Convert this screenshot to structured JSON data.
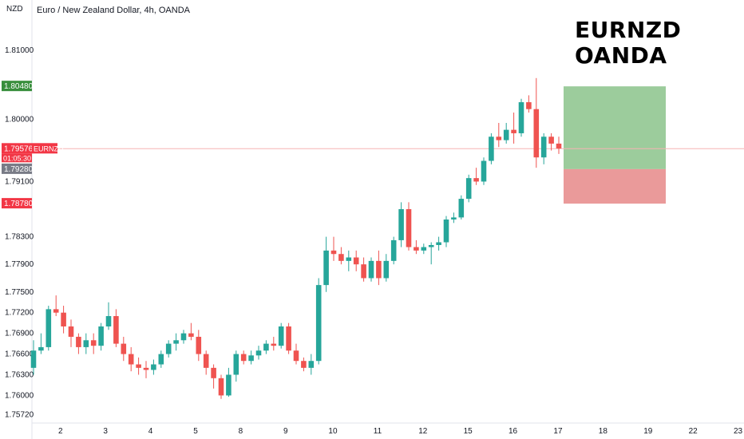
{
  "header": {
    "title": "Euro / New Zealand Dollar, 4h, OANDA",
    "axis_unit": "NZD"
  },
  "annotation": {
    "line1": "EURNZD",
    "line2": "OANDA"
  },
  "badges": {
    "target_price": "1.80480",
    "current_price": "1.79576",
    "symbol": "EURNZD",
    "countdown": "01:05:30",
    "entry_price": "1.79280",
    "stop_price": "1.78780"
  },
  "colors": {
    "up": "#26a69a",
    "down": "#ef5350",
    "target_zone": "#9ccc9c",
    "stop_zone": "#ea9a9a",
    "price_line": "#f7b3b3"
  },
  "chart_data": {
    "type": "candlestick",
    "y_ticks": [
      "1.81000",
      "1.80000",
      "1.79100",
      "1.78300",
      "1.77900",
      "1.77500",
      "1.77200",
      "1.76900",
      "1.76600",
      "1.76300",
      "1.76000",
      "1.75720"
    ],
    "x_ticks": [
      "2",
      "3",
      "4",
      "5",
      "8",
      "9",
      "10",
      "11",
      "12",
      "15",
      "16",
      "17",
      "18",
      "19",
      "22",
      "23"
    ],
    "ylim": [
      1.756,
      1.815
    ],
    "current_price": 1.79576,
    "position": {
      "target": 1.8048,
      "entry": 1.7928,
      "stop": 1.7878
    },
    "candles": [
      [
        1.764,
        1.768,
        1.763,
        1.7665
      ],
      [
        1.7665,
        1.769,
        1.766,
        1.767
      ],
      [
        1.767,
        1.773,
        1.7665,
        1.7725
      ],
      [
        1.7725,
        1.7745,
        1.7715,
        1.772
      ],
      [
        1.772,
        1.773,
        1.769,
        1.77
      ],
      [
        1.77,
        1.771,
        1.767,
        1.7685
      ],
      [
        1.7685,
        1.769,
        1.766,
        1.767
      ],
      [
        1.767,
        1.769,
        1.766,
        1.768
      ],
      [
        1.768,
        1.769,
        1.766,
        1.7672
      ],
      [
        1.7672,
        1.7705,
        1.7665,
        1.77
      ],
      [
        1.77,
        1.7735,
        1.7695,
        1.7715
      ],
      [
        1.7715,
        1.7725,
        1.767,
        1.7675
      ],
      [
        1.7675,
        1.7685,
        1.765,
        1.766
      ],
      [
        1.766,
        1.767,
        1.7635,
        1.7645
      ],
      [
        1.7645,
        1.7655,
        1.763,
        1.764
      ],
      [
        1.764,
        1.765,
        1.7625,
        1.7637
      ],
      [
        1.7637,
        1.7652,
        1.763,
        1.7645
      ],
      [
        1.7645,
        1.7665,
        1.764,
        1.766
      ],
      [
        1.766,
        1.768,
        1.7655,
        1.7675
      ],
      [
        1.7675,
        1.769,
        1.7665,
        1.768
      ],
      [
        1.768,
        1.7695,
        1.7675,
        1.769
      ],
      [
        1.769,
        1.7705,
        1.768,
        1.7685
      ],
      [
        1.7685,
        1.7695,
        1.765,
        1.766
      ],
      [
        1.766,
        1.7665,
        1.763,
        1.764
      ],
      [
        1.764,
        1.7645,
        1.761,
        1.7625
      ],
      [
        1.7625,
        1.763,
        1.7595,
        1.76
      ],
      [
        1.76,
        1.764,
        1.7598,
        1.763
      ],
      [
        1.763,
        1.7665,
        1.762,
        1.766
      ],
      [
        1.766,
        1.7665,
        1.7645,
        1.765
      ],
      [
        1.765,
        1.7665,
        1.7645,
        1.7658
      ],
      [
        1.7658,
        1.7672,
        1.7652,
        1.7665
      ],
      [
        1.7665,
        1.768,
        1.766,
        1.7675
      ],
      [
        1.7675,
        1.7685,
        1.7665,
        1.7672
      ],
      [
        1.7672,
        1.7705,
        1.7668,
        1.77
      ],
      [
        1.77,
        1.7705,
        1.766,
        1.7665
      ],
      [
        1.7665,
        1.7675,
        1.7645,
        1.765
      ],
      [
        1.765,
        1.7655,
        1.7635,
        1.764
      ],
      [
        1.764,
        1.766,
        1.763,
        1.765
      ],
      [
        1.765,
        1.777,
        1.7645,
        1.776
      ],
      [
        1.776,
        1.783,
        1.775,
        1.781
      ],
      [
        1.781,
        1.783,
        1.7795,
        1.7805
      ],
      [
        1.7805,
        1.7815,
        1.779,
        1.7795
      ],
      [
        1.7795,
        1.781,
        1.778,
        1.78
      ],
      [
        1.78,
        1.781,
        1.778,
        1.779
      ],
      [
        1.779,
        1.78,
        1.7765,
        1.777
      ],
      [
        1.777,
        1.78,
        1.7765,
        1.7795
      ],
      [
        1.7795,
        1.781,
        1.776,
        1.777
      ],
      [
        1.777,
        1.7805,
        1.7765,
        1.7795
      ],
      [
        1.7795,
        1.783,
        1.779,
        1.7825
      ],
      [
        1.7825,
        1.788,
        1.7815,
        1.787
      ],
      [
        1.787,
        1.788,
        1.781,
        1.7815
      ],
      [
        1.7815,
        1.7825,
        1.7805,
        1.781
      ],
      [
        1.781,
        1.782,
        1.7805,
        1.7815
      ],
      [
        1.7815,
        1.7822,
        1.779,
        1.7818
      ],
      [
        1.7818,
        1.783,
        1.781,
        1.7822
      ],
      [
        1.7822,
        1.786,
        1.7815,
        1.7855
      ],
      [
        1.7855,
        1.7865,
        1.785,
        1.7858
      ],
      [
        1.7858,
        1.789,
        1.7855,
        1.7885
      ],
      [
        1.7885,
        1.792,
        1.788,
        1.7915
      ],
      [
        1.7915,
        1.793,
        1.7905,
        1.791
      ],
      [
        1.791,
        1.7945,
        1.7905,
        1.794
      ],
      [
        1.794,
        1.798,
        1.7935,
        1.7975
      ],
      [
        1.7975,
        1.7995,
        1.796,
        1.797
      ],
      [
        1.797,
        1.7995,
        1.7965,
        1.7985
      ],
      [
        1.7985,
        1.801,
        1.7965,
        1.798
      ],
      [
        1.798,
        1.803,
        1.7975,
        1.8025
      ],
      [
        1.8025,
        1.8035,
        1.801,
        1.8015
      ],
      [
        1.8015,
        1.806,
        1.793,
        1.7945
      ],
      [
        1.7945,
        1.798,
        1.7935,
        1.7975
      ],
      [
        1.7975,
        1.798,
        1.7955,
        1.7965
      ],
      [
        1.7965,
        1.7975,
        1.795,
        1.7958
      ]
    ]
  }
}
